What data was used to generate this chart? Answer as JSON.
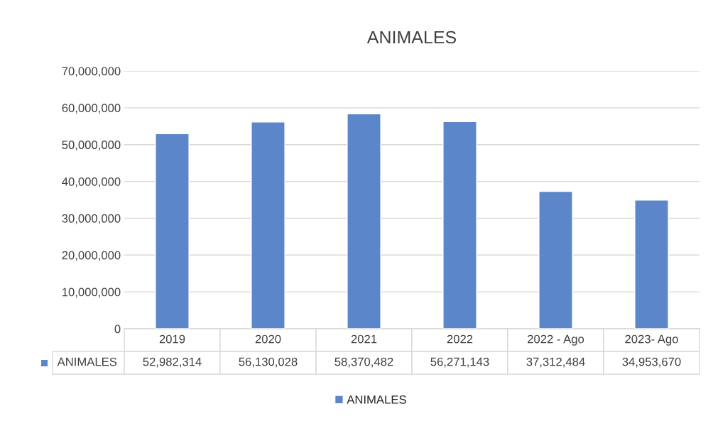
{
  "chart_data": {
    "type": "bar",
    "title": "ANIMALES",
    "categories": [
      "2019",
      "2020",
      "2021",
      "2022",
      "2022 - Ago",
      "2023- Ago"
    ],
    "series": [
      {
        "name": "ANIMALES",
        "color": "#5b86c9",
        "values": [
          52982314,
          56130028,
          58370482,
          56271143,
          37312484,
          34953670
        ],
        "value_labels": [
          "52,982,314",
          "56,130,028",
          "58,370,482",
          "56,271,143",
          "37,312,484",
          "34,953,670"
        ]
      }
    ],
    "ylim": [
      0,
      70000000
    ],
    "yticks": [
      {
        "value": 0,
        "label": "0"
      },
      {
        "value": 10000000,
        "label": "10,000,000"
      },
      {
        "value": 20000000,
        "label": "20,000,000"
      },
      {
        "value": 30000000,
        "label": "30,000,000"
      },
      {
        "value": 40000000,
        "label": "40,000,000"
      },
      {
        "value": 50000000,
        "label": "50,000,000"
      },
      {
        "value": 60000000,
        "label": "60,000,000"
      },
      {
        "value": 70000000,
        "label": "70,000,000"
      }
    ],
    "grid": "y",
    "legend": "bottom"
  }
}
